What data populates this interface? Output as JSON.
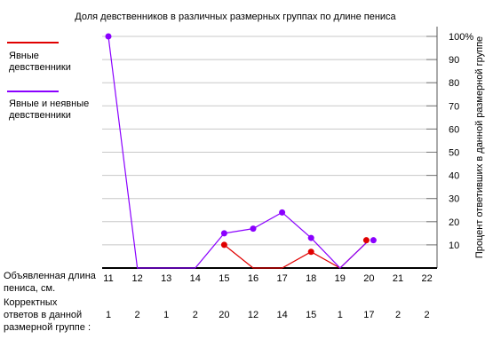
{
  "chart_data": {
    "type": "line",
    "title": "Доля девственников в различных размерных группах по длине пениса",
    "xlabel": "Объявленная длина пениса, см.",
    "ylabel": "Процент ответивших в данной размерной группе",
    "x": [
      11,
      12,
      13,
      14,
      15,
      16,
      17,
      18,
      19,
      20,
      21,
      22
    ],
    "ylim": [
      0,
      100
    ],
    "yticks": [
      "10",
      "20",
      "30",
      "40",
      "50",
      "60",
      "70",
      "80",
      "90",
      "100%"
    ],
    "grid": true,
    "legend_position": "left",
    "counts_label": "Корректных ответов в данной размерной группе :",
    "counts": [
      1,
      2,
      1,
      2,
      20,
      12,
      14,
      15,
      1,
      17,
      2,
      2
    ],
    "series": [
      {
        "name": "Явные девственники",
        "color": "#e00000",
        "x": [
          15,
          16,
          17,
          18,
          19,
          20
        ],
        "y": [
          10,
          0,
          0,
          7,
          0,
          12
        ],
        "markers": [
          15,
          18,
          20
        ]
      },
      {
        "name": "Явные и неявные девственники",
        "color": "#8a00ff",
        "x": [
          11,
          12,
          13,
          14,
          15,
          16,
          17,
          18,
          19,
          20
        ],
        "y": [
          100,
          0,
          0,
          0,
          15,
          17,
          24,
          13,
          0,
          12
        ],
        "markers": [
          11,
          15,
          16,
          17,
          18,
          20
        ]
      }
    ]
  }
}
